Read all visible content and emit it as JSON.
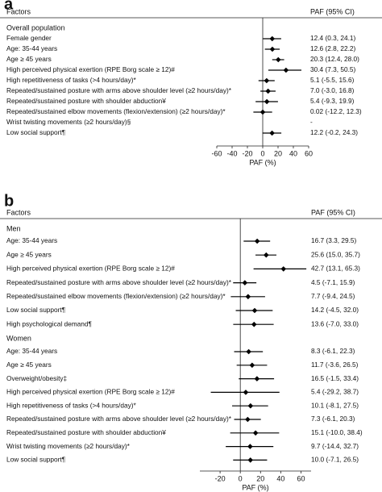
{
  "chart_data": [
    {
      "type": "forest",
      "panel": "a",
      "header_left": "Factors",
      "header_right": "PAF (95% CI)",
      "xlabel": "PAF (%)",
      "xlim": [
        -60,
        60
      ],
      "xticks": [
        -60,
        -40,
        -20,
        0,
        20,
        40,
        60
      ],
      "groups": [
        {
          "name": "Overall population",
          "categories": [
            "Female gender",
            "Age: 35-44 years",
            "Age ≥ 45 years",
            "High perceived physical exertion (RPE Borg scale ≥ 12)#",
            "High repetitiveness of tasks (>4 hours/day)*",
            "Repeated/sustained posture with arms above shoulder level (≥2 hours/day)*",
            "Repeated/sustained posture with shoulder abduction¥",
            "Repeated/sustained elbow movements (flexion/extension) (≥2 hours/day)*",
            "Wrist twisting movements (≥2 hours/day)§",
            "Low social support¶"
          ],
          "estimates": [
            12.4,
            12.6,
            20.3,
            30.4,
            5.1,
            7.0,
            5.4,
            0.02,
            null,
            12.2
          ],
          "lower": [
            0.3,
            2.8,
            12.4,
            7.3,
            -5.5,
            -3.0,
            -9.3,
            -12.2,
            null,
            -0.2
          ],
          "upper": [
            24.1,
            22.2,
            28.0,
            50.5,
            15.6,
            16.8,
            19.9,
            12.3,
            null,
            24.3
          ],
          "value_labels": [
            "12.4 (0.3, 24.1)",
            "12.6 (2.8, 22.2)",
            "20.3 (12.4, 28.0)",
            "30.4 (7.3, 50.5)",
            "5.1 (-5.5, 15.6)",
            "7.0 (-3.0, 16.8)",
            "5.4 (-9.3, 19.9)",
            "0.02 (-12.2, 12.3)",
            "-",
            "12.2 (-0.2, 24.3)"
          ]
        }
      ]
    },
    {
      "type": "forest",
      "panel": "b",
      "header_left": "Factors",
      "header_right": "PAF (95% CI)",
      "xlabel": "PAF (%)",
      "xlim": [
        -40,
        70
      ],
      "xticks": [
        -20,
        0,
        20,
        40,
        60
      ],
      "groups": [
        {
          "name": "Men",
          "categories": [
            "Age: 35-44 years",
            "Age ≥ 45 years",
            "High perceived physical exertion (RPE Borg scale ≥ 12)#",
            "Repeated/sustained posture with arms above shoulder level (≥2 hours/day)*",
            "Repeated/sustained elbow movements (flexion/extension) (≥2 hours/day)*",
            "Low social support¶",
            "High psychological demand¶"
          ],
          "estimates": [
            16.7,
            25.6,
            42.7,
            4.5,
            7.7,
            14.2,
            13.6
          ],
          "lower": [
            3.3,
            15.0,
            13.1,
            -7.1,
            -9.4,
            -4.5,
            -7.0
          ],
          "upper": [
            29.5,
            35.7,
            65.3,
            15.9,
            24.5,
            32.0,
            33.0
          ],
          "value_labels": [
            "16.7 (3.3, 29.5)",
            "25.6 (15.0, 35.7)",
            "42.7 (13.1, 65.3)",
            "4.5 (-7.1, 15.9)",
            "7.7 (-9.4, 24.5)",
            "14.2 (-4.5, 32.0)",
            "13.6 (-7.0, 33.0)"
          ]
        },
        {
          "name": "Women",
          "categories": [
            "Age: 35-44 years",
            "Age ≥ 45 years",
            "Overweight/obesity‡",
            "High perceived physical exertion (RPE Borg scale ≥ 12)#",
            "High repetitiveness of tasks (>4 hours/day)*",
            "Repeated/sustained posture with arms above shoulder level (≥2 hours/day)*",
            "Repeated/sustained posture with shoulder abduction¥",
            "Wrist twisting movements (≥2 hours/day)*",
            "Low social support¶"
          ],
          "estimates": [
            8.3,
            11.7,
            16.5,
            5.4,
            10.1,
            7.3,
            15.1,
            9.7,
            10.0
          ],
          "lower": [
            -6.1,
            -3.6,
            -1.5,
            -29.2,
            -8.1,
            -6.1,
            -10.0,
            -14.4,
            -7.1
          ],
          "upper": [
            22.3,
            26.5,
            33.4,
            38.7,
            27.5,
            20.3,
            38.4,
            32.7,
            26.5
          ],
          "value_labels": [
            "8.3 (-6.1, 22.3)",
            "11.7 (-3.6, 26.5)",
            "16.5 (-1.5, 33.4)",
            "5.4 (-29.2, 38.7)",
            "10.1 (-8.1, 27.5)",
            "7.3 (-6.1, 20.3)",
            "15.1 (-10.0, 38.4)",
            "9.7 (-14.4, 32.7)",
            "10.0 (-7.1, 26.5)"
          ]
        }
      ]
    }
  ]
}
